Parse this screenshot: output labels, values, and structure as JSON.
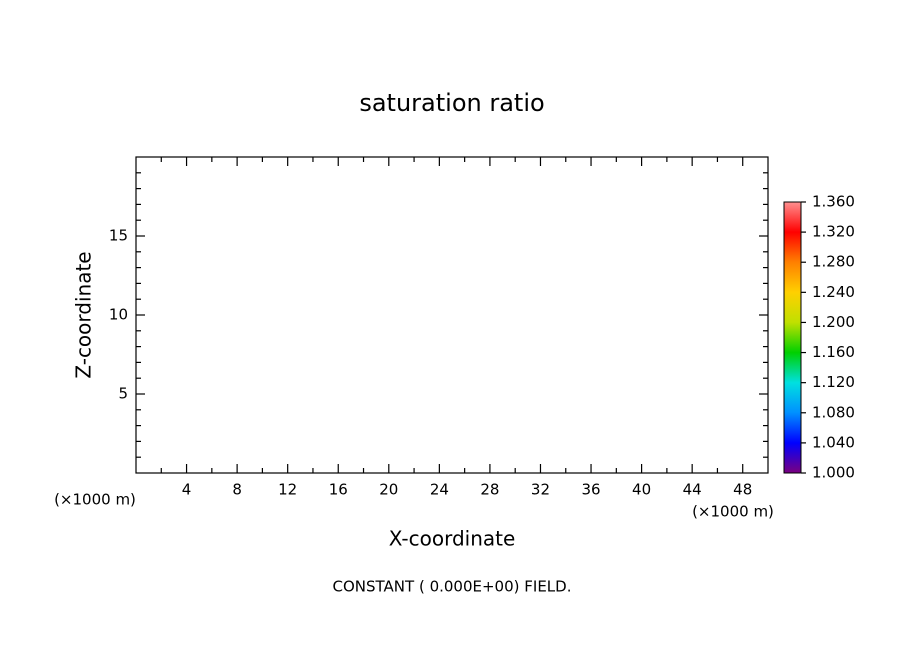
{
  "chart_data": {
    "type": "contour",
    "title": "saturation ratio",
    "xlabel": "X-coordinate",
    "ylabel": "Z-coordinate",
    "x_unit": "(×1000 m)",
    "y_unit": "(×1000 m)",
    "note": "CONSTANT ( 0.000E+00) FIELD.",
    "xlim": [
      0,
      50
    ],
    "xticks": [
      4,
      8,
      12,
      16,
      20,
      24,
      28,
      32,
      36,
      40,
      44,
      48
    ],
    "xminorticks": [
      2,
      6,
      10,
      14,
      18,
      22,
      26,
      30,
      34,
      38,
      42,
      46
    ],
    "ylim": [
      0,
      20
    ],
    "yticks": [
      5,
      10,
      15
    ],
    "yminorticks": [
      1,
      2,
      3,
      4,
      6,
      7,
      8,
      9,
      11,
      12,
      13,
      14,
      16,
      17,
      18,
      19
    ],
    "colorbar": {
      "lim": [
        1.0,
        1.36
      ],
      "ticks": [
        {
          "value": 1.0,
          "label": "1.000"
        },
        {
          "value": 1.04,
          "label": "1.040"
        },
        {
          "value": 1.08,
          "label": "1.080"
        },
        {
          "value": 1.12,
          "label": "1.120"
        },
        {
          "value": 1.16,
          "label": "1.160"
        },
        {
          "value": 1.2,
          "label": "1.200"
        },
        {
          "value": 1.24,
          "label": "1.240"
        },
        {
          "value": 1.28,
          "label": "1.280"
        },
        {
          "value": 1.32,
          "label": "1.320"
        },
        {
          "value": 1.36,
          "label": "1.360"
        }
      ],
      "colors": [
        "#7a0080",
        "#0000ff",
        "#0090ff",
        "#00e0e0",
        "#00d000",
        "#c0e000",
        "#ffd000",
        "#ff8000",
        "#ff0000",
        "#ff9090"
      ]
    }
  }
}
